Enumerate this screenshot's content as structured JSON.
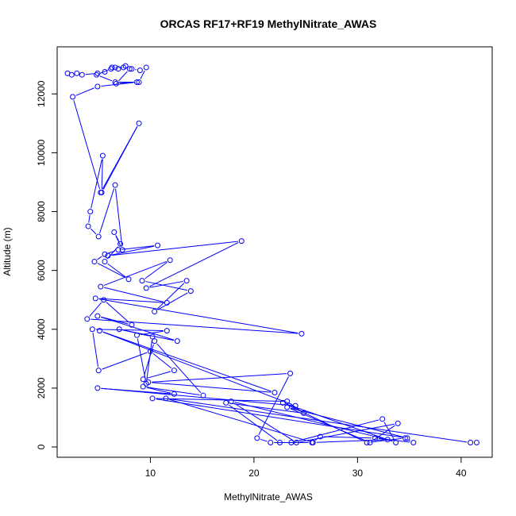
{
  "chart_data": {
    "type": "line",
    "title": "ORCAS RF17+RF19 MethylNitrate_AWAS",
    "xlabel": "MethylNitrate_AWAS",
    "ylabel": "Altitude (m)",
    "xlim": [
      1,
      43
    ],
    "ylim": [
      -350,
      13600
    ],
    "x_ticks": [
      10,
      20,
      30,
      40
    ],
    "y_ticks": [
      0,
      2000,
      4000,
      6000,
      8000,
      10000,
      12000
    ],
    "grid": false,
    "legend": "none",
    "color": "#0000ff",
    "series": [
      {
        "points": [
          [
            2.0,
            12700
          ],
          [
            2.4,
            12650
          ],
          [
            2.9,
            12700
          ],
          [
            3.4,
            12650
          ],
          [
            4.9,
            12700
          ],
          [
            5.6,
            12750
          ],
          [
            6.3,
            12900
          ],
          [
            6.9,
            12850
          ],
          [
            7.6,
            12950
          ],
          [
            8.2,
            12850
          ],
          [
            9.0,
            12800
          ],
          [
            9.6,
            12900
          ],
          [
            8.9,
            12400
          ],
          [
            6.6,
            12400
          ],
          [
            4.8,
            12650
          ],
          [
            6.2,
            12850
          ],
          [
            6.6,
            12900
          ],
          [
            7.4,
            12900
          ],
          [
            8.0,
            12850
          ],
          [
            6.7,
            12350
          ],
          [
            8.7,
            12400
          ],
          [
            4.9,
            12250
          ],
          [
            2.5,
            11900
          ],
          [
            5.2,
            8650
          ],
          [
            8.9,
            11000
          ],
          [
            5.3,
            8650
          ],
          [
            5.4,
            9900
          ],
          [
            4.2,
            8000
          ],
          [
            4.0,
            7500
          ],
          [
            5.0,
            7150
          ],
          [
            6.6,
            8900
          ],
          [
            7.3,
            6700
          ],
          [
            6.5,
            7300
          ],
          [
            7.1,
            6900
          ],
          [
            5.6,
            6300
          ],
          [
            7.9,
            5700
          ],
          [
            4.6,
            6300
          ],
          [
            5.6,
            6550
          ],
          [
            6.9,
            6700
          ],
          [
            10.7,
            6850
          ],
          [
            5.9,
            6500
          ],
          [
            18.8,
            7000
          ],
          [
            9.6,
            5400
          ],
          [
            13.5,
            5650
          ],
          [
            10.4,
            4600
          ],
          [
            13.9,
            5300
          ],
          [
            9.2,
            5650
          ],
          [
            11.9,
            6350
          ],
          [
            5.2,
            5450
          ],
          [
            11.6,
            4900
          ],
          [
            4.7,
            5050
          ],
          [
            24.6,
            3850
          ],
          [
            3.9,
            4350
          ],
          [
            5.5,
            5000
          ],
          [
            8.2,
            4150
          ],
          [
            4.9,
            4450
          ],
          [
            12.6,
            3600
          ],
          [
            7.0,
            4000
          ],
          [
            10.2,
            3750
          ],
          [
            9.6,
            2150
          ],
          [
            8.7,
            3800
          ],
          [
            11.6,
            3950
          ],
          [
            4.4,
            4000
          ],
          [
            5.0,
            2600
          ],
          [
            10.0,
            3250
          ],
          [
            12.3,
            2600
          ],
          [
            9.3,
            2300
          ],
          [
            10.4,
            3600
          ],
          [
            15.1,
            1750
          ],
          [
            9.3,
            2050
          ],
          [
            12.3,
            1800
          ],
          [
            4.9,
            2000
          ],
          [
            24.0,
            1400
          ],
          [
            5.1,
            3950
          ],
          [
            22.0,
            1850
          ],
          [
            9.8,
            2200
          ],
          [
            23.5,
            2500
          ],
          [
            20.3,
            300
          ],
          [
            21.6,
            150
          ],
          [
            25.6,
            150
          ],
          [
            26.4,
            350
          ],
          [
            31.7,
            300
          ],
          [
            35.4,
            150
          ],
          [
            34.6,
            300
          ],
          [
            30.9,
            150
          ],
          [
            22.8,
            1500
          ],
          [
            33.7,
            150
          ],
          [
            32.4,
            950
          ],
          [
            23.6,
            150
          ],
          [
            22.5,
            150
          ],
          [
            17.3,
            1500
          ],
          [
            24.8,
            1150
          ],
          [
            23.2,
            1550
          ],
          [
            10.2,
            1650
          ],
          [
            34.8,
            300
          ],
          [
            23.2,
            1350
          ],
          [
            31.2,
            150
          ],
          [
            33.9,
            800
          ],
          [
            24.1,
            150
          ],
          [
            17.8,
            1550
          ],
          [
            32.9,
            250
          ],
          [
            25.7,
            150
          ],
          [
            11.5,
            1650
          ],
          [
            40.9,
            150
          ],
          [
            41.5,
            150
          ]
        ]
      }
    ]
  }
}
